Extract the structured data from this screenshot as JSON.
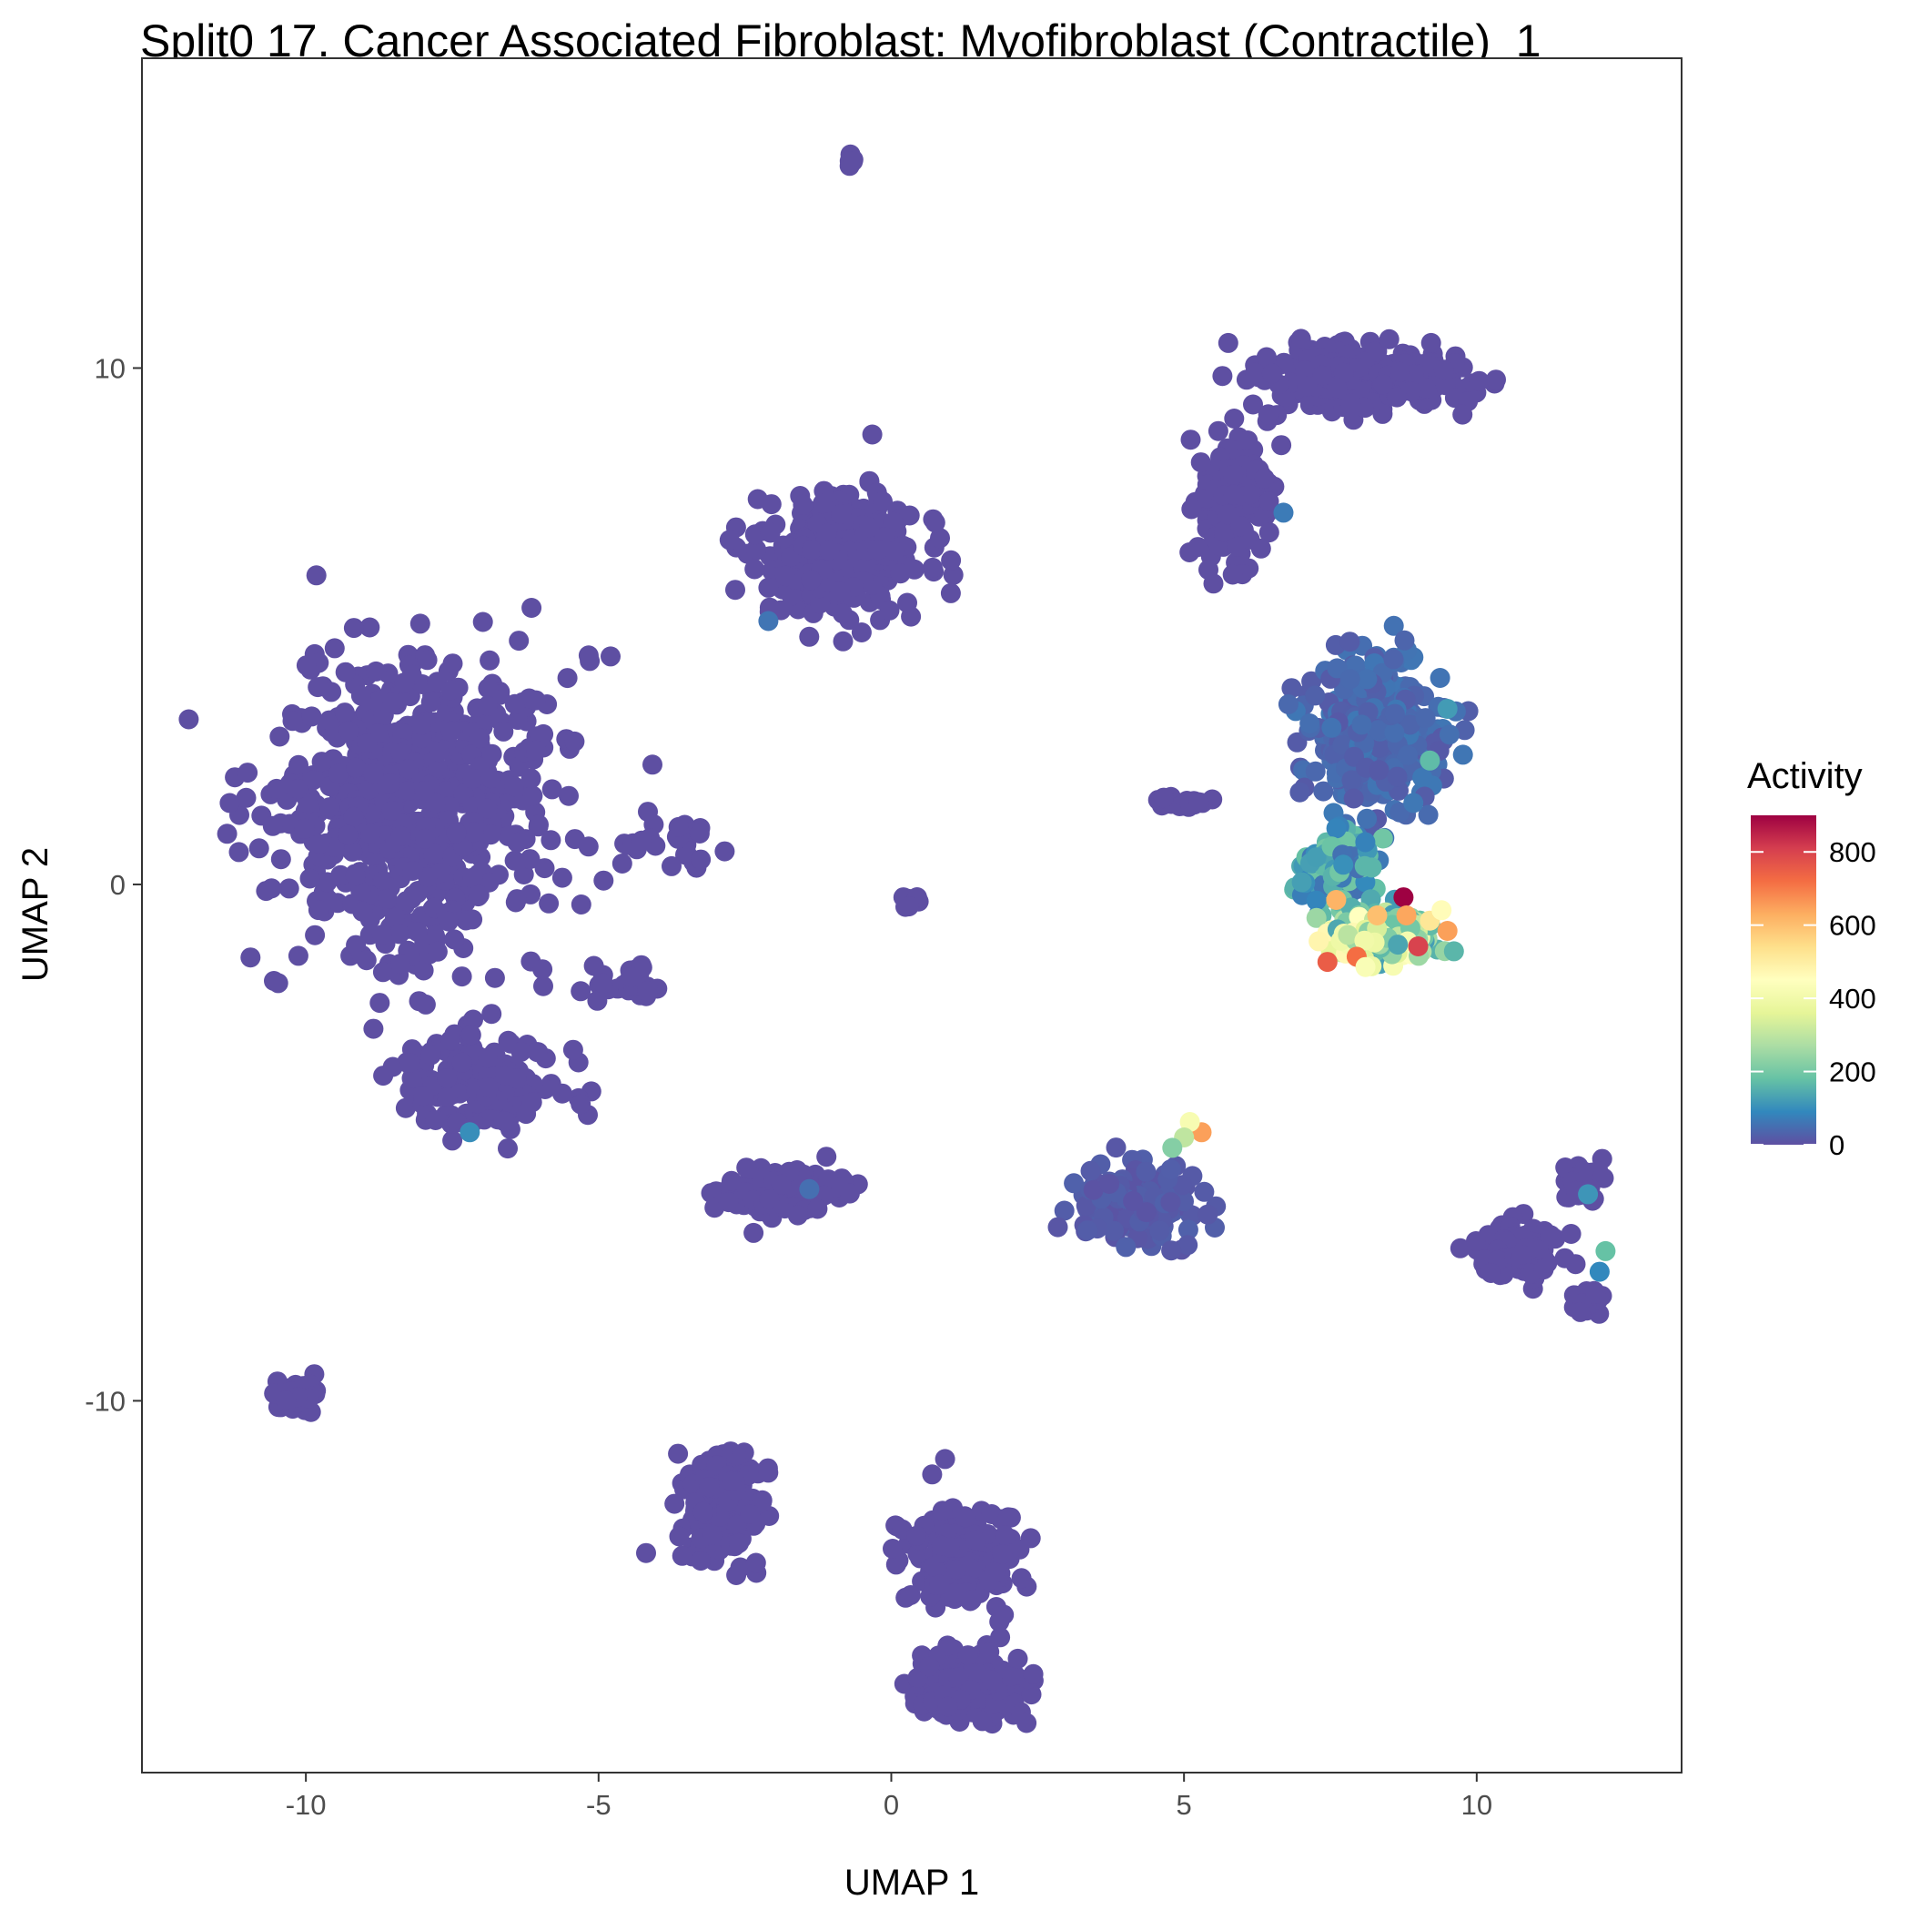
{
  "chart_data": {
    "type": "scatter",
    "title": "Split0 17. Cancer Associated Fibroblast: Myofibroblast (Contractile)_1",
    "xlabel": "UMAP 1",
    "ylabel": "UMAP 2",
    "xlim": [
      -12.8,
      13.5
    ],
    "ylim": [
      -17.2,
      16.0
    ],
    "x_ticks": [
      -10,
      -5,
      0,
      5,
      10
    ],
    "y_ticks": [
      -10,
      0,
      10
    ],
    "grid": false,
    "legend": {
      "title": "Activity",
      "placement": "right",
      "ticks": [
        0,
        200,
        400,
        600,
        800
      ],
      "range": [
        0,
        900
      ],
      "colormap": [
        "#5E4FA2",
        "#3288BD",
        "#66C2A5",
        "#ABDDA4",
        "#E6F598",
        "#FFFFBF",
        "#FEE08B",
        "#FDAE61",
        "#F46D43",
        "#D53E4F",
        "#9E0142"
      ]
    },
    "point_color_default": "#5E4FA2",
    "clusters": [
      {
        "cx": -8.2,
        "cy": 1.5,
        "sx": 2.2,
        "sy": 2.6,
        "n": 700,
        "activity": 0
      },
      {
        "cx": -7.0,
        "cy": -3.8,
        "sx": 1.2,
        "sy": 0.9,
        "n": 160,
        "activity": 0
      },
      {
        "cx": -10.2,
        "cy": -9.9,
        "sx": 0.45,
        "sy": 0.3,
        "n": 60,
        "activity": 0
      },
      {
        "cx": -0.9,
        "cy": 6.4,
        "sx": 1.2,
        "sy": 1.1,
        "n": 280,
        "activity": 0
      },
      {
        "cx": -0.7,
        "cy": 14.0,
        "sx": 0.12,
        "sy": 0.12,
        "n": 6,
        "activity": 0
      },
      {
        "cx": -3.6,
        "cy": 0.8,
        "sx": 0.9,
        "sy": 0.5,
        "n": 25,
        "activity": 0
      },
      {
        "cx": -4.6,
        "cy": -1.9,
        "sx": 0.7,
        "sy": 0.4,
        "n": 25,
        "activity": 0
      },
      {
        "cx": 0.3,
        "cy": -0.3,
        "sx": 0.15,
        "sy": 0.12,
        "n": 8,
        "activity": 0
      },
      {
        "cx": -1.8,
        "cy": -6.0,
        "sx": 0.9,
        "sy": 0.4,
        "n": 110,
        "activity": 0
      },
      {
        "cx": -3.0,
        "cy": -12.0,
        "sx": 0.7,
        "sy": 1.0,
        "n": 150,
        "activity": 0
      },
      {
        "cx": 1.2,
        "cy": -13.0,
        "sx": 0.9,
        "sy": 0.9,
        "n": 160,
        "activity": 0
      },
      {
        "cx": 1.3,
        "cy": -15.5,
        "sx": 0.9,
        "sy": 0.6,
        "n": 150,
        "activity": 0
      },
      {
        "cx": 4.2,
        "cy": -6.2,
        "sx": 0.9,
        "sy": 0.7,
        "n": 170,
        "activity": 20
      },
      {
        "cx": 8.0,
        "cy": 9.8,
        "sx": 1.5,
        "sy": 0.5,
        "n": 320,
        "activity": 0
      },
      {
        "cx": 5.8,
        "cy": 7.5,
        "sx": 0.6,
        "sy": 1.2,
        "n": 140,
        "activity": 0
      },
      {
        "cx": 8.3,
        "cy": 3.0,
        "sx": 1.1,
        "sy": 1.3,
        "n": 380,
        "activity": 45
      },
      {
        "cx": 7.6,
        "cy": 0.3,
        "sx": 0.6,
        "sy": 0.8,
        "n": 120,
        "activity": 140
      },
      {
        "cx": 8.4,
        "cy": -1.0,
        "sx": 0.8,
        "sy": 0.4,
        "n": 180,
        "activity": 330
      },
      {
        "cx": 5.0,
        "cy": 1.6,
        "sx": 0.35,
        "sy": 0.12,
        "n": 18,
        "activity": 0
      },
      {
        "cx": 10.7,
        "cy": -7.1,
        "sx": 0.7,
        "sy": 0.5,
        "n": 100,
        "activity": 0
      },
      {
        "cx": 11.8,
        "cy": -5.8,
        "sx": 0.45,
        "sy": 0.35,
        "n": 40,
        "activity": 0
      },
      {
        "cx": 11.9,
        "cy": -8.0,
        "sx": 0.3,
        "sy": 0.3,
        "n": 30,
        "activity": 0
      }
    ],
    "highlight_points": [
      {
        "x": 8.75,
        "y": -0.25,
        "activity": 900
      },
      {
        "x": 9.0,
        "y": -1.2,
        "activity": 800
      },
      {
        "x": 7.45,
        "y": -1.5,
        "activity": 750
      },
      {
        "x": 7.95,
        "y": -1.4,
        "activity": 720
      },
      {
        "x": 8.8,
        "y": -0.6,
        "activity": 640
      },
      {
        "x": 7.6,
        "y": -0.3,
        "activity": 620
      },
      {
        "x": 9.5,
        "y": -0.9,
        "activity": 650
      },
      {
        "x": 8.3,
        "y": -0.6,
        "activity": 600
      },
      {
        "x": 5.3,
        "y": -4.8,
        "activity": 650
      },
      {
        "x": 5.1,
        "y": -4.6,
        "activity": 420
      },
      {
        "x": 9.2,
        "y": -0.7,
        "activity": 520
      },
      {
        "x": 7.3,
        "y": -1.1,
        "activity": 480
      },
      {
        "x": 8.1,
        "y": -1.6,
        "activity": 430
      },
      {
        "x": 9.4,
        "y": -0.5,
        "activity": 460
      },
      {
        "x": 5.0,
        "y": -4.9,
        "activity": 300
      },
      {
        "x": 4.8,
        "y": -5.1,
        "activity": 220
      },
      {
        "x": 12.2,
        "y": -7.1,
        "activity": 180
      },
      {
        "x": 11.9,
        "y": -6.0,
        "activity": 110
      },
      {
        "x": 12.1,
        "y": -7.5,
        "activity": 90
      },
      {
        "x": -7.2,
        "y": -4.8,
        "activity": 100
      },
      {
        "x": -2.1,
        "y": 5.1,
        "activity": 60
      },
      {
        "x": -1.4,
        "y": -5.9,
        "activity": 50
      },
      {
        "x": 6.7,
        "y": 7.2,
        "activity": 70
      },
      {
        "x": 9.2,
        "y": 2.4,
        "activity": 170
      },
      {
        "x": 9.5,
        "y": 3.4,
        "activity": 120
      }
    ]
  }
}
